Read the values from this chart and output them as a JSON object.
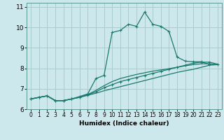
{
  "title": "",
  "xlabel": "Humidex (Indice chaleur)",
  "ylabel": "",
  "bg_color": "#cce8ec",
  "grid_color": "#aacccc",
  "line_color": "#1a7a6e",
  "xlim": [
    -0.5,
    23.5
  ],
  "ylim": [
    6,
    11.2
  ],
  "x_ticks": [
    0,
    1,
    2,
    3,
    4,
    5,
    6,
    7,
    8,
    9,
    10,
    11,
    12,
    13,
    14,
    15,
    16,
    17,
    18,
    19,
    20,
    21,
    22,
    23
  ],
  "y_ticks": [
    6,
    7,
    8,
    9,
    10,
    11
  ],
  "series": [
    {
      "x": [
        0,
        1,
        2,
        3,
        4,
        5,
        6,
        7,
        8,
        9,
        10,
        11,
        12,
        13,
        14,
        15,
        16,
        17,
        18,
        19,
        20,
        21,
        22,
        23
      ],
      "y": [
        6.5,
        6.58,
        6.65,
        6.42,
        6.42,
        6.5,
        6.58,
        6.68,
        6.78,
        6.9,
        7.0,
        7.1,
        7.2,
        7.3,
        7.4,
        7.5,
        7.6,
        7.7,
        7.8,
        7.88,
        7.95,
        8.05,
        8.15,
        8.18
      ],
      "marker": false,
      "lw": 0.9
    },
    {
      "x": [
        0,
        1,
        2,
        3,
        4,
        5,
        6,
        7,
        8,
        9,
        10,
        11,
        12,
        13,
        14,
        15,
        16,
        17,
        18,
        19,
        20,
        21,
        22,
        23
      ],
      "y": [
        6.5,
        6.58,
        6.65,
        6.42,
        6.42,
        6.5,
        6.58,
        6.7,
        6.85,
        7.05,
        7.2,
        7.35,
        7.45,
        7.55,
        7.65,
        7.75,
        7.85,
        7.95,
        8.05,
        8.15,
        8.25,
        8.3,
        8.3,
        8.2
      ],
      "marker": true,
      "lw": 0.9
    },
    {
      "x": [
        0,
        1,
        2,
        3,
        4,
        5,
        6,
        7,
        8,
        9,
        10,
        11,
        12,
        13,
        14,
        15,
        16,
        17,
        18,
        19,
        20,
        21,
        22
      ],
      "y": [
        6.5,
        6.58,
        6.65,
        6.42,
        6.42,
        6.5,
        6.62,
        6.75,
        7.5,
        7.65,
        9.75,
        9.85,
        10.15,
        10.05,
        10.75,
        10.15,
        10.05,
        9.8,
        8.55,
        8.35,
        8.32,
        8.32,
        8.18
      ],
      "marker": true,
      "lw": 0.9
    },
    {
      "x": [
        0,
        1,
        2,
        3,
        4,
        5,
        6,
        7,
        8,
        9,
        10,
        11,
        12,
        13,
        14,
        15,
        16,
        17,
        18,
        19,
        20,
        21,
        22,
        23
      ],
      "y": [
        6.5,
        6.58,
        6.65,
        6.42,
        6.42,
        6.5,
        6.6,
        6.72,
        6.92,
        7.15,
        7.35,
        7.5,
        7.6,
        7.7,
        7.78,
        7.86,
        7.92,
        7.98,
        8.05,
        8.12,
        8.18,
        8.22,
        8.22,
        8.18
      ],
      "marker": false,
      "lw": 0.9
    }
  ]
}
